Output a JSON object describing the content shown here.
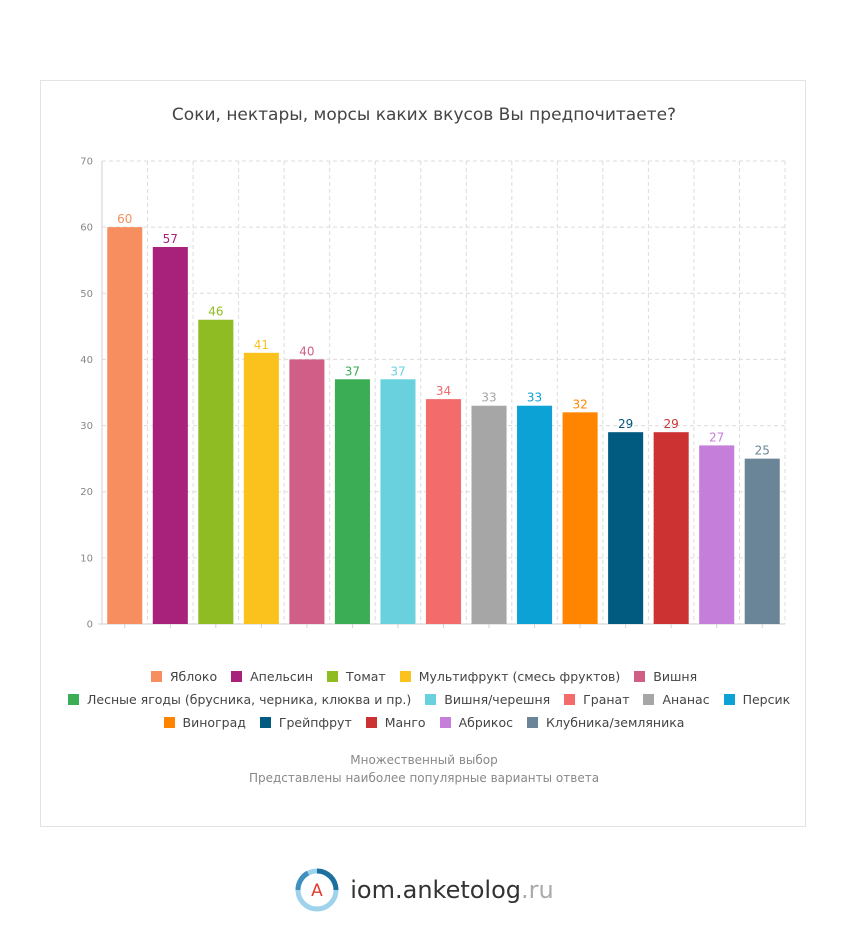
{
  "chart_data": {
    "type": "bar",
    "title": "Соки, нектары, морсы каких вкусов Вы предпочитаете?",
    "xlabel": "",
    "ylabel": "",
    "ylim": [
      0,
      70
    ],
    "yticks": [
      "0",
      "10",
      "20",
      "30",
      "40",
      "50",
      "60",
      "70"
    ],
    "grid": true,
    "legend_position": "bottom",
    "categories": [
      "Яблоко",
      "Апельсин",
      "Томат",
      "Мультифрукт (смесь фруктов)",
      "Вишня",
      "Лесные ягоды (брусника, черника, клюква и пр.)",
      "Вишня/черешня",
      "Гранат",
      "Ананас",
      "Персик",
      "Виноград",
      "Грейпфрут",
      "Манго",
      "Абрикос",
      "Клубника/земляника"
    ],
    "values": [
      60,
      57,
      46,
      41,
      40,
      37,
      37,
      34,
      33,
      33,
      32,
      29,
      29,
      27,
      25
    ],
    "colors": [
      "#f78e5f",
      "#a8217a",
      "#8fbc23",
      "#fbc21d",
      "#d05e86",
      "#3bae55",
      "#68d1dd",
      "#f36b6b",
      "#a6a6a6",
      "#0da2d6",
      "#ff8500",
      "#015a80",
      "#cc3232",
      "#c57ed9",
      "#6a8598"
    ],
    "legend_rows": [
      [
        0,
        1,
        2,
        3,
        4
      ],
      [
        5,
        6,
        7,
        8,
        9
      ],
      [
        10,
        11,
        12,
        13,
        14
      ]
    ]
  },
  "notes": {
    "line1": "Множественный выбор",
    "line2": "Представлены наиболее популярные варианты ответа"
  },
  "brand": {
    "logo_letter": "A",
    "name": "iom.anketolog",
    "tld": ".ru",
    "accent_color": "#e03c31",
    "ring_color": "#3f8fbf"
  }
}
